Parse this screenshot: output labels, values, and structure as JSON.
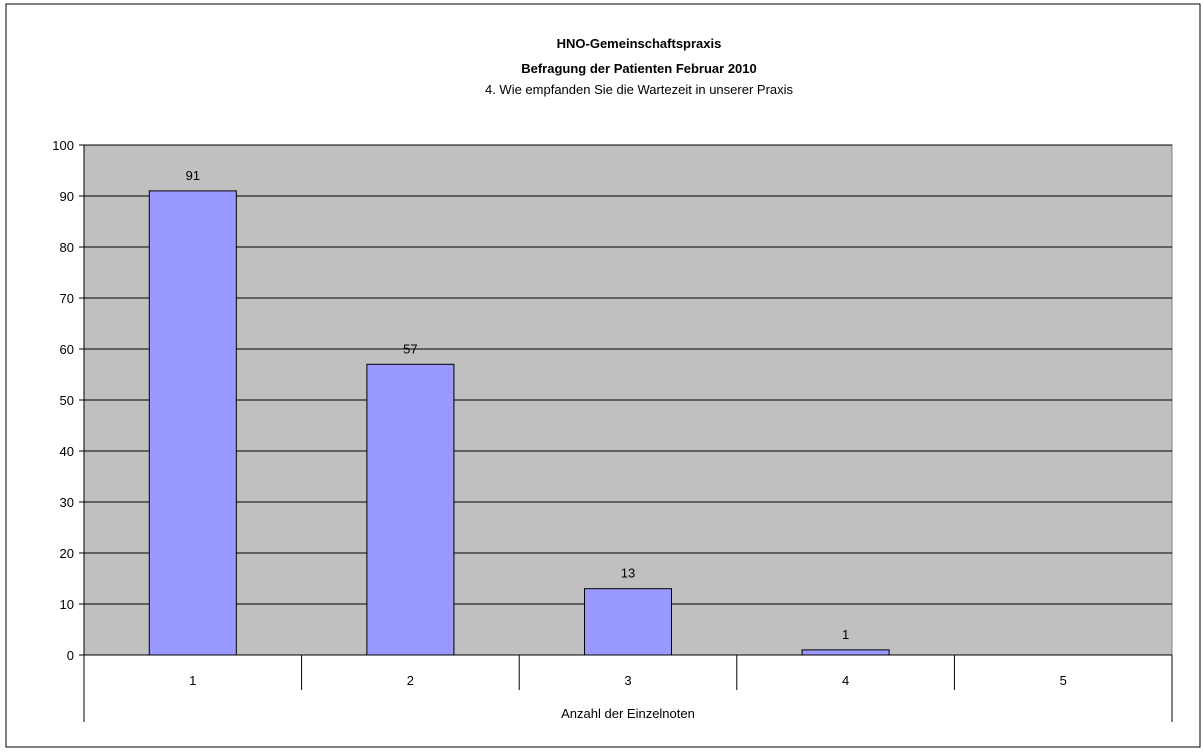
{
  "chart_data": {
    "type": "bar",
    "title": "HNO-Gemeinschaftspraxis",
    "subtitle": "Befragung der Patienten Februar 2010",
    "question": "4. Wie empfanden Sie die Wartezeit in unserer Praxis",
    "xlabel": "Anzahl der Einzelnoten",
    "ylabel": "",
    "categories": [
      "1",
      "2",
      "3",
      "4",
      "5"
    ],
    "values": [
      91,
      57,
      13,
      1,
      0
    ],
    "data_labels": [
      "91",
      "57",
      "13",
      "1",
      ""
    ],
    "ylim": [
      0,
      100
    ],
    "yticks": [
      "0",
      "10",
      "20",
      "30",
      "40",
      "50",
      "60",
      "70",
      "80",
      "90",
      "100"
    ],
    "grid": true,
    "legend": "none",
    "colors": {
      "bar_fill": "#9999ff",
      "bar_stroke": "#000000",
      "plot_background": "#c0c0c0",
      "gridline": "#000000"
    }
  }
}
